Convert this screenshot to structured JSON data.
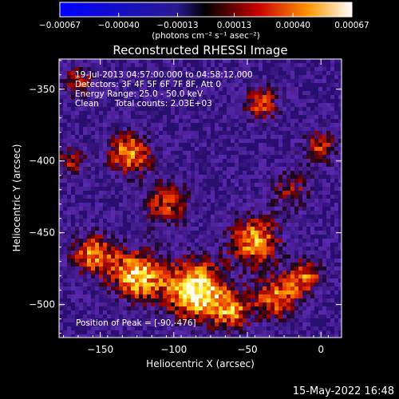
{
  "chart_data": {
    "type": "heatmap",
    "title": "Reconstructed RHESSI Image",
    "xlabel": "Heliocentric X (arcsec)",
    "ylabel": "Heliocentric Y (arcsec)",
    "xlim": [
      -178,
      14
    ],
    "ylim": [
      -523,
      -329
    ],
    "xticks": [
      -150,
      -100,
      -50,
      0
    ],
    "yticks": [
      -350,
      -400,
      -450,
      -500
    ],
    "xtick_labels": [
      "−150",
      "−100",
      "−50",
      "0"
    ],
    "ytick_labels": [
      "−350",
      "−400",
      "−450",
      "−500"
    ],
    "colorbar": {
      "range": [
        -0.00067,
        0.00067
      ],
      "ticks": [
        -0.00067,
        -0.0004,
        -0.00013,
        0.00013,
        0.0004,
        0.00067
      ],
      "tick_labels": [
        "−0.00067",
        "−0.00040",
        "−0.00013",
        "0.00013",
        "0.00040",
        "0.00067"
      ],
      "unit_label": "(photons cm⁻² s⁻¹ asec⁻²)"
    },
    "annotations": [
      "19-Jul-2013 04:57:00.000 to 04:58:12.000",
      "Detectors: 3F 4F 5F 6F 7F 8F, Att 0",
      "Energy Range: 25.0 - 50.0 keV",
      "Clean      Total counts: 2.03E+03"
    ],
    "peak_label": "Position of Peak = [-90,-476]",
    "peak_position": [
      -90,
      -476
    ],
    "grid": false,
    "hotspots": [
      {
        "x": -85,
        "y": -490,
        "amplitude": 1.0,
        "sigma": 15
      },
      {
        "x": -125,
        "y": -480,
        "amplitude": 0.85,
        "sigma": 13
      },
      {
        "x": -155,
        "y": -465,
        "amplitude": 0.7,
        "sigma": 11
      },
      {
        "x": -130,
        "y": -395,
        "amplitude": 0.75,
        "sigma": 11
      },
      {
        "x": -105,
        "y": -430,
        "amplitude": 0.55,
        "sigma": 12
      },
      {
        "x": -45,
        "y": -455,
        "amplitude": 0.75,
        "sigma": 13
      },
      {
        "x": -30,
        "y": -495,
        "amplitude": 0.7,
        "sigma": 11
      },
      {
        "x": -10,
        "y": -480,
        "amplitude": 0.6,
        "sigma": 9
      },
      {
        "x": -40,
        "y": -360,
        "amplitude": 0.6,
        "sigma": 9
      },
      {
        "x": 0,
        "y": -390,
        "amplitude": 0.55,
        "sigma": 9
      },
      {
        "x": -170,
        "y": -400,
        "amplitude": 0.5,
        "sigma": 8
      },
      {
        "x": -165,
        "y": -345,
        "amplitude": 0.55,
        "sigma": 8
      },
      {
        "x": -60,
        "y": -505,
        "amplitude": 0.6,
        "sigma": 10
      },
      {
        "x": -20,
        "y": -420,
        "amplitude": 0.45,
        "sigma": 10
      }
    ]
  },
  "footer": {
    "timestamp": "15-May-2022 16:48"
  }
}
